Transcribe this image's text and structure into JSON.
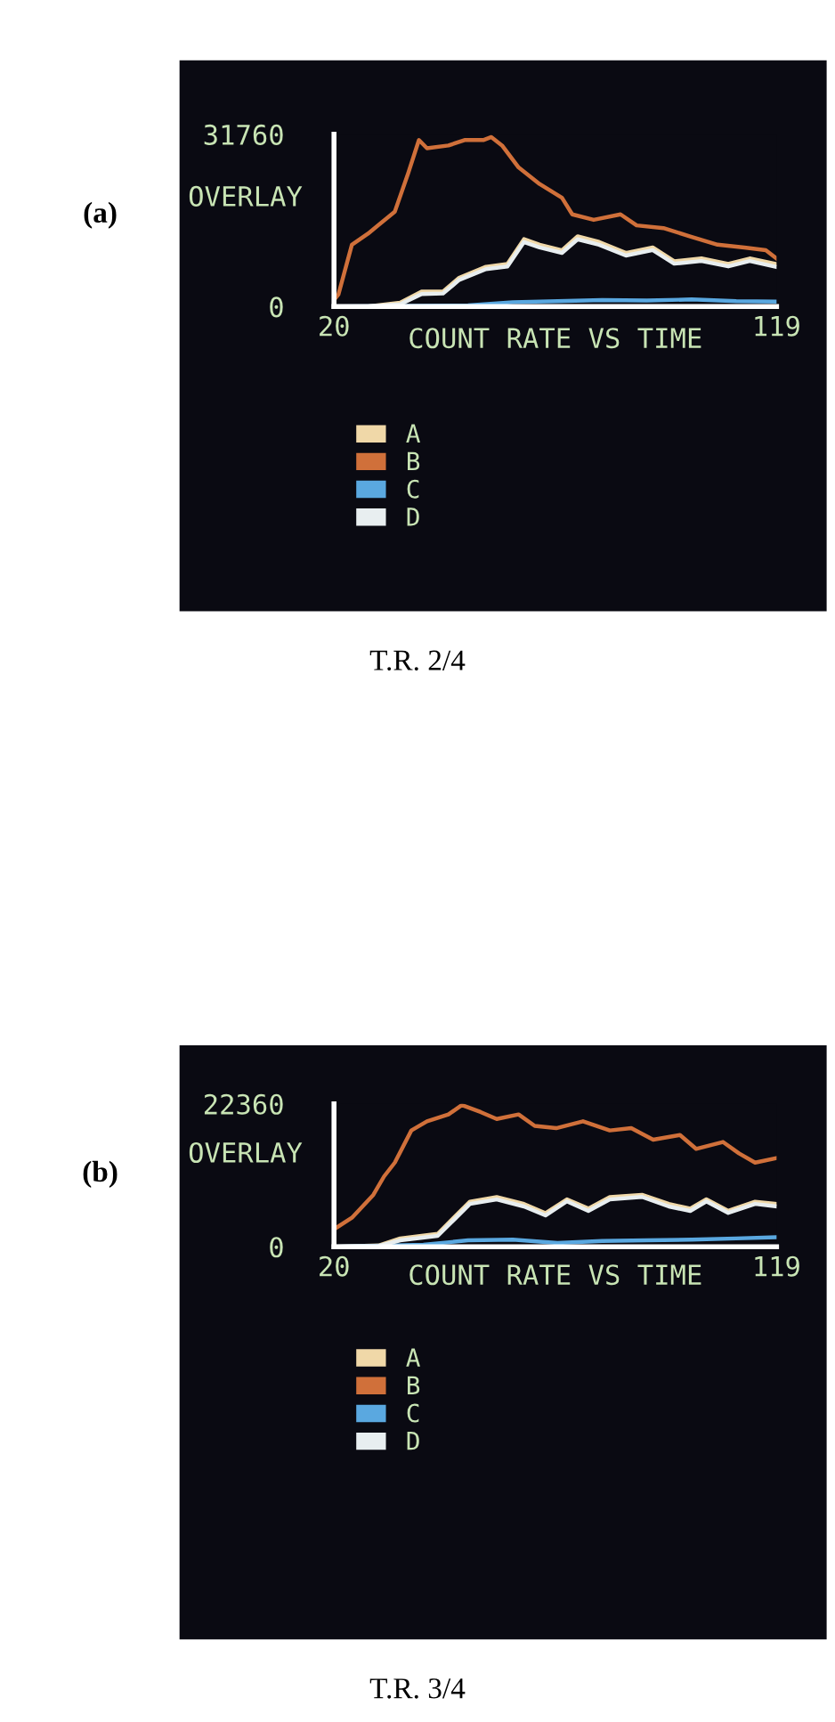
{
  "chart_data": [
    {
      "type": "line",
      "ylabel": "OVERLAY",
      "xlabel": "COUNT RATE VS TIME",
      "xlim": [
        20,
        119
      ],
      "xticks": [
        20,
        119
      ],
      "ylim": [
        0,
        31760
      ],
      "yticks": [
        0,
        31760
      ],
      "legend": "bottom",
      "annotations": [
        "(a)",
        "T.R. 2/4"
      ],
      "series": [
        {
          "name": "A",
          "color": "#f0d8a8",
          "x": [
            20,
            27.6,
            34.8,
            39.6,
            44.4,
            48,
            54,
            58.8,
            62.5,
            66,
            71,
            74.5,
            79.3,
            85.3,
            91.3,
            96.1,
            102.2,
            108.2,
            113,
            119
          ],
          "values": [
            0,
            0,
            700,
            2750,
            2750,
            5300,
            7330,
            7840,
            12420,
            11400,
            10380,
            12930,
            11910,
            9870,
            10890,
            8350,
            8860,
            7840,
            8860,
            7840
          ]
        },
        {
          "name": "B",
          "color": "#d0703a",
          "x": [
            20,
            21,
            24,
            27.6,
            33.6,
            36.6,
            39,
            40.8,
            45.6,
            49.2,
            53.4,
            55.2,
            57.6,
            61.3,
            66,
            71,
            73.3,
            78.1,
            84.1,
            87.7,
            93.7,
            99.7,
            105.8,
            111.8,
            116.6,
            119
          ],
          "values": [
            1200,
            2240,
            11400,
            13440,
            17500,
            24600,
            30700,
            29200,
            29700,
            30700,
            30700,
            31250,
            29700,
            25650,
            22600,
            20050,
            17000,
            15980,
            17000,
            14960,
            14460,
            12930,
            11400,
            10890,
            10380,
            8860
          ]
        },
        {
          "name": "C",
          "color": "#5aa8e0",
          "x": [
            20,
            50,
            60,
            70,
            80,
            90,
            100,
            110,
            119
          ],
          "values": [
            0,
            200,
            800,
            1000,
            1200,
            1100,
            1300,
            1000,
            900
          ]
        },
        {
          "name": "D",
          "color": "#e8eef0",
          "x": [
            20,
            27.6,
            34.8,
            39.6,
            44.4,
            48,
            54,
            58.8,
            62.5,
            66,
            71,
            74.5,
            79.3,
            85.3,
            91.3,
            96.1,
            102.2,
            108.2,
            113,
            119
          ],
          "values": [
            0,
            0,
            400,
            2300,
            2400,
            4900,
            6900,
            7400,
            11900,
            10900,
            9900,
            12400,
            11400,
            9400,
            10400,
            7900,
            8400,
            7400,
            8400,
            7300
          ]
        }
      ]
    },
    {
      "type": "line",
      "ylabel": "OVERLAY",
      "xlabel": "COUNT RATE VS TIME",
      "xlim": [
        20,
        119
      ],
      "xticks": [
        20,
        119
      ],
      "ylim": [
        0,
        22360
      ],
      "yticks": [
        0,
        22360
      ],
      "legend": "bottom",
      "annotations": [
        "(b)",
        "T.R. 3/4"
      ],
      "series": [
        {
          "name": "A",
          "color": "#f0d8a8",
          "x": [
            20,
            30,
            34.8,
            43.2,
            46.8,
            50.4,
            56.4,
            62.5,
            67.3,
            72.1,
            76.9,
            81.7,
            88.9,
            94.9,
            99.7,
            103.3,
            108.2,
            114.2,
            119
          ],
          "values": [
            0,
            200,
            1290,
            2010,
            4530,
            7050,
            7770,
            6690,
            5250,
            7410,
            5970,
            7770,
            8120,
            6690,
            5970,
            7410,
            5610,
            7050,
            6690
          ]
        },
        {
          "name": "B",
          "color": "#d0703a",
          "x": [
            20,
            24,
            28.8,
            31.2,
            33.6,
            37.3,
            40.8,
            45.6,
            48.6,
            52.8,
            56.4,
            61.3,
            64.9,
            69.7,
            75.7,
            81.7,
            86.5,
            91.4,
            97.4,
            101,
            107,
            110.6,
            114.2,
            119
          ],
          "values": [
            2730,
            4530,
            8120,
            11000,
            13160,
            18190,
            19630,
            20700,
            22150,
            21070,
            19990,
            20700,
            18910,
            18550,
            19630,
            18190,
            18550,
            16750,
            17470,
            15310,
            16390,
            14600,
            13160,
            13880
          ]
        },
        {
          "name": "C",
          "color": "#5aa8e0",
          "x": [
            20,
            40,
            50,
            60,
            70,
            80,
            90,
            100,
            110,
            119
          ],
          "values": [
            0,
            300,
            1000,
            1100,
            600,
            900,
            1000,
            1100,
            1300,
            1500
          ]
        },
        {
          "name": "D",
          "color": "#e8eef0",
          "x": [
            20,
            30,
            34.8,
            43.2,
            46.8,
            50.4,
            56.4,
            62.5,
            67.3,
            72.1,
            76.9,
            81.7,
            88.9,
            94.9,
            99.7,
            103.3,
            108.2,
            114.2,
            119
          ],
          "values": [
            0,
            100,
            1000,
            1700,
            4200,
            6700,
            7400,
            6300,
            4900,
            7100,
            5600,
            7400,
            7800,
            6300,
            5600,
            7100,
            5300,
            6700,
            6300
          ]
        }
      ]
    }
  ]
}
